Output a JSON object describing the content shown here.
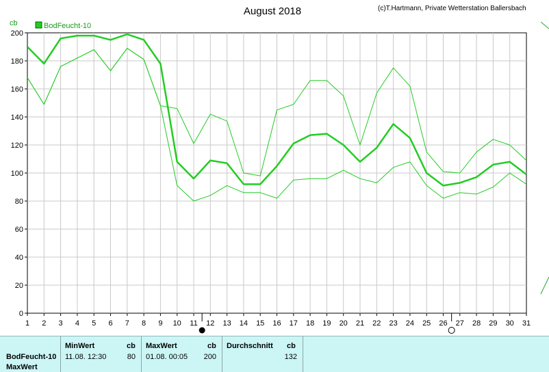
{
  "chart_data": {
    "type": "line",
    "title": "August 2018",
    "copyright": "(c)T.Hartmann, Private Wetterstation Ballersbach",
    "ylabel": "cb",
    "ylim": [
      0,
      200
    ],
    "y_ticks": [
      "0",
      "20",
      "40",
      "60",
      "80",
      "100",
      "120",
      "140",
      "160",
      "180",
      "200"
    ],
    "x": [
      "1",
      "2",
      "3",
      "4",
      "5",
      "6",
      "7",
      "8",
      "9",
      "10",
      "11",
      "12",
      "13",
      "14",
      "15",
      "16",
      "17",
      "18",
      "19",
      "20",
      "21",
      "22",
      "23",
      "24",
      "25",
      "26",
      "27",
      "28",
      "29",
      "30",
      "31"
    ],
    "legend": {
      "label": "BodFeucht-10",
      "position": "top-left"
    },
    "grid": true,
    "colors": {
      "series": "#22cc22",
      "legend_box": "#22cc22"
    },
    "series": [
      {
        "role": "max",
        "values": [
          168,
          149,
          176,
          182,
          188,
          173,
          189,
          181,
          148,
          146,
          121,
          142,
          137,
          100,
          98,
          145,
          149,
          166,
          166,
          155,
          120,
          157,
          175,
          162,
          115,
          101,
          100,
          115,
          124,
          120,
          109
        ]
      },
      {
        "role": "avg",
        "values": [
          190,
          178,
          196,
          198,
          198,
          195,
          199,
          195,
          178,
          108,
          96,
          109,
          107,
          92,
          92,
          105,
          121,
          127,
          128,
          120,
          108,
          118,
          135,
          125,
          100,
          91,
          93,
          97,
          106,
          108,
          99
        ]
      },
      {
        "role": "min",
        "values": [
          168,
          149,
          176,
          182,
          188,
          173,
          189,
          181,
          148,
          91,
          80,
          84,
          91,
          86,
          86,
          82,
          95,
          96,
          96,
          102,
          96,
          93,
          104,
          108,
          91,
          82,
          86,
          85,
          90,
          100,
          92
        ]
      }
    ],
    "markers": {
      "filled_after_day": 11,
      "open_after_day": 26
    }
  },
  "stats": {
    "row_label": "BodFeucht-10",
    "row_label2": "MaxWert",
    "min": {
      "header": "MinWert",
      "unit": "cb",
      "time": "11.08.  12:30",
      "value": "80"
    },
    "max": {
      "header": "MaxWert",
      "unit": "cb",
      "time": "01.08.  00:05",
      "value": "200"
    },
    "avg": {
      "header": "Durchschnitt",
      "unit": "cb",
      "value": "132"
    }
  }
}
